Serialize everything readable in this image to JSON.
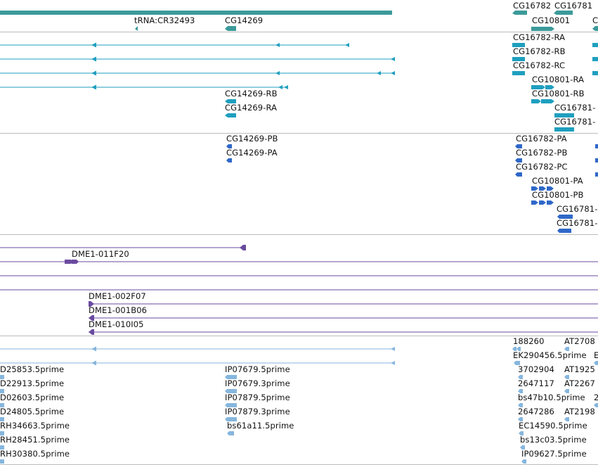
{
  "colors": {
    "gene": "#3c9a9a",
    "transcript": "#1f9fbf",
    "protein": "#2f68c8",
    "clone": "#6a4aa0",
    "est": "#86b6dd",
    "separator": "#bcbcbc"
  },
  "tracks": {
    "gene": {
      "labels": [
        "CG16782",
        "CG16781",
        "tRNA:CR32493",
        "CG14269",
        "CG10801",
        "C"
      ]
    },
    "transcript": {
      "labels": [
        "CG16782-RA",
        "CG16782-RB",
        "CG16782-RC",
        "CG10801-RA",
        "CG10801-RB",
        "CG14269-RB",
        "CG14269-RA",
        "CG16781-",
        "CG16781-"
      ]
    },
    "protein": {
      "labels": [
        "CG14269-PB",
        "CG14269-PA",
        "CG16782-PA",
        "CG16782-PB",
        "CG16782-PC",
        "CG10801-PA",
        "CG10801-PB",
        "CG16781-",
        "CG16781-"
      ]
    },
    "clone": {
      "labels": [
        "DME1-011F20",
        "DME1-002F07",
        "DME1-001B06",
        "DME1-010I05"
      ]
    },
    "est": {
      "labels": [
        "188260",
        "AT2708",
        "EK290456.5prime",
        "E",
        "D25853.5prime",
        "IP07679.5prime",
        "3702904",
        "AT1925",
        "D22913.5prime",
        "IP07679.3prime",
        "2647117",
        "AT2267",
        "D02603.5prime",
        "IP07879.5prime",
        "bs47b10.5prime",
        "2",
        "D24805.5prime",
        "IP07879.3prime",
        "2647286",
        "AT2198",
        "RH34663.5prime",
        "bs61a11.5prime",
        "EC14590.5prime",
        "RH28451.5prime",
        "bs13c03.5prime",
        "RH30380.5prime",
        "IP09627.5prime"
      ]
    }
  }
}
